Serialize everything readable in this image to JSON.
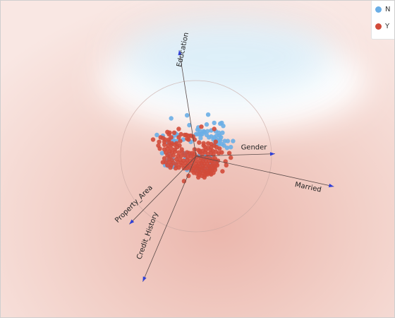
{
  "chart_data": {
    "type": "scatter",
    "title": "",
    "legend": {
      "placement": "top-right",
      "entries": [
        {
          "name": "N",
          "color": "#6aaee6"
        },
        {
          "name": "Y",
          "color": "#d24b3a"
        }
      ]
    },
    "axes": [
      {
        "name": "Education",
        "direction": [
          -0.16,
          -1.0
        ]
      },
      {
        "name": "Gender",
        "direction": [
          1.0,
          -0.03
        ]
      },
      {
        "name": "Married",
        "direction": [
          1.0,
          0.22
        ]
      },
      {
        "name": "Property_Area",
        "direction": [
          -0.53,
          0.54
        ]
      },
      {
        "name": "Credit_History",
        "direction": [
          -0.4,
          0.94
        ]
      }
    ],
    "series": [
      {
        "name": "N",
        "color": "#6aaee6",
        "points": [
          [
            -0.12,
            -0.54
          ],
          [
            0.16,
            -0.55
          ],
          [
            -0.33,
            -0.5
          ],
          [
            0.24,
            -0.44
          ],
          [
            -0.09,
            -0.41
          ],
          [
            0.14,
            -0.42
          ],
          [
            0.32,
            -0.43
          ],
          [
            0.34,
            -0.44
          ],
          [
            0.36,
            -0.4
          ],
          [
            0.03,
            -0.38
          ],
          [
            0.02,
            -0.35
          ],
          [
            0.05,
            -0.33
          ],
          [
            0.1,
            -0.33
          ],
          [
            0.15,
            -0.33
          ],
          [
            0.11,
            -0.32
          ],
          [
            0.2,
            -0.34
          ],
          [
            0.26,
            -0.33
          ],
          [
            0.3,
            -0.31
          ],
          [
            0.35,
            -0.31
          ],
          [
            -0.27,
            -0.3
          ],
          [
            -0.25,
            -0.28
          ],
          [
            -0.29,
            -0.27
          ],
          [
            0.0,
            -0.29
          ],
          [
            0.03,
            -0.29
          ],
          [
            0.06,
            -0.29
          ],
          [
            0.08,
            -0.29
          ],
          [
            0.14,
            -0.28
          ],
          [
            0.17,
            -0.25
          ],
          [
            0.2,
            -0.26
          ],
          [
            0.24,
            -0.25
          ],
          [
            0.27,
            -0.27
          ],
          [
            0.31,
            -0.27
          ],
          [
            0.33,
            -0.25
          ],
          [
            -0.52,
            -0.28
          ],
          [
            -0.44,
            -0.27
          ],
          [
            -0.33,
            -0.23
          ],
          [
            -0.3,
            -0.21
          ],
          [
            -0.29,
            -0.19
          ],
          [
            -0.26,
            -0.2
          ],
          [
            -0.17,
            -0.22
          ],
          [
            -0.1,
            -0.22
          ],
          [
            -0.07,
            -0.19
          ],
          [
            0.06,
            -0.24
          ],
          [
            0.23,
            -0.22
          ],
          [
            0.27,
            -0.22
          ],
          [
            0.3,
            -0.21
          ],
          [
            0.32,
            -0.21
          ],
          [
            0.38,
            -0.2
          ],
          [
            0.42,
            -0.2
          ],
          [
            0.49,
            -0.2
          ],
          [
            -0.37,
            -0.18
          ],
          [
            0.25,
            -0.17
          ],
          [
            0.3,
            -0.16
          ],
          [
            0.34,
            -0.16
          ],
          [
            0.37,
            -0.14
          ],
          [
            0.41,
            -0.11
          ],
          [
            0.46,
            -0.12
          ],
          [
            -0.45,
            -0.04
          ],
          [
            -0.36,
            -0.03
          ],
          [
            -0.16,
            -0.04
          ],
          [
            -0.14,
            -0.03
          ],
          [
            -0.07,
            -0.02
          ],
          [
            0.03,
            0.0
          ],
          [
            0.06,
            -0.01
          ],
          [
            0.13,
            0.0
          ],
          [
            -0.36,
            0.01
          ],
          [
            -0.31,
            0.04
          ],
          [
            -0.39,
            0.06
          ],
          [
            -0.14,
            0.03
          ],
          [
            0.11,
            0.04
          ],
          [
            0.19,
            0.01
          ],
          [
            -0.33,
            0.1
          ],
          [
            -0.28,
            0.1
          ],
          [
            0.19,
            0.1
          ],
          [
            0.25,
            0.08
          ],
          [
            0.28,
            0.07
          ],
          [
            -0.41,
            0.12
          ],
          [
            -0.37,
            0.13
          ],
          [
            -0.31,
            0.14
          ],
          [
            -0.28,
            0.13
          ],
          [
            -0.08,
            0.13
          ],
          [
            0.08,
            0.12
          ],
          [
            0.23,
            0.12
          ],
          [
            0.03,
            0.17
          ],
          [
            0.1,
            0.17
          ],
          [
            0.13,
            0.17
          ],
          [
            0.15,
            0.16
          ],
          [
            0.2,
            0.17
          ],
          [
            -0.12,
            0.18
          ],
          [
            0.0,
            0.19
          ],
          [
            0.06,
            0.2
          ]
        ]
      },
      {
        "name": "Y",
        "color": "#d24b3a",
        "points": [
          [
            0.24,
            -0.36
          ],
          [
            -0.23,
            -0.36
          ],
          [
            -0.38,
            -0.32
          ],
          [
            -0.35,
            -0.31
          ],
          [
            -0.29,
            -0.31
          ],
          [
            -0.2,
            -0.29
          ],
          [
            -0.15,
            -0.28
          ],
          [
            -0.13,
            -0.28
          ],
          [
            -0.1,
            -0.27
          ],
          [
            -0.07,
            -0.27
          ],
          [
            -0.04,
            -0.26
          ],
          [
            -0.47,
            -0.25
          ],
          [
            -0.44,
            -0.24
          ],
          [
            -0.41,
            -0.22
          ],
          [
            -0.36,
            -0.22
          ],
          [
            -0.33,
            -0.25
          ],
          [
            -0.23,
            -0.25
          ],
          [
            -0.12,
            -0.23
          ],
          [
            -0.1,
            -0.22
          ],
          [
            -0.02,
            -0.22
          ],
          [
            -0.57,
            -0.22
          ],
          [
            -0.49,
            -0.19
          ],
          [
            -0.42,
            -0.19
          ],
          [
            -0.36,
            -0.19
          ],
          [
            -0.32,
            -0.17
          ],
          [
            -0.26,
            -0.17
          ],
          [
            -0.21,
            -0.2
          ],
          [
            0.04,
            -0.18
          ],
          [
            0.1,
            -0.17
          ],
          [
            0.16,
            -0.17
          ],
          [
            0.2,
            -0.16
          ],
          [
            0.26,
            -0.19
          ],
          [
            -0.5,
            -0.14
          ],
          [
            -0.42,
            -0.15
          ],
          [
            -0.37,
            -0.14
          ],
          [
            -0.33,
            -0.15
          ],
          [
            -0.28,
            -0.15
          ],
          [
            -0.25,
            -0.12
          ],
          [
            -0.22,
            -0.14
          ],
          [
            0.1,
            -0.14
          ],
          [
            0.12,
            -0.12
          ],
          [
            0.16,
            -0.11
          ],
          [
            0.2,
            -0.12
          ],
          [
            0.24,
            -0.14
          ],
          [
            0.27,
            -0.12
          ],
          [
            0.31,
            -0.1
          ],
          [
            -0.48,
            -0.1
          ],
          [
            -0.42,
            -0.09
          ],
          [
            -0.38,
            -0.1
          ],
          [
            -0.33,
            -0.1
          ],
          [
            -0.28,
            -0.09
          ],
          [
            -0.19,
            -0.09
          ],
          [
            -0.02,
            -0.09
          ],
          [
            0.03,
            -0.08
          ],
          [
            0.05,
            -0.07
          ],
          [
            0.09,
            -0.07
          ],
          [
            0.13,
            -0.08
          ],
          [
            0.19,
            -0.08
          ],
          [
            0.22,
            -0.07
          ],
          [
            0.26,
            -0.06
          ],
          [
            0.3,
            -0.04
          ],
          [
            -0.4,
            -0.05
          ],
          [
            -0.35,
            -0.06
          ],
          [
            -0.32,
            -0.05
          ],
          [
            -0.28,
            -0.06
          ],
          [
            -0.23,
            -0.05
          ],
          [
            -0.18,
            -0.05
          ],
          [
            -0.12,
            -0.05
          ],
          [
            -0.09,
            -0.04
          ],
          [
            -0.05,
            -0.04
          ],
          [
            -0.02,
            -0.03
          ],
          [
            0.05,
            -0.05
          ],
          [
            0.08,
            -0.03
          ],
          [
            0.12,
            -0.05
          ],
          [
            0.16,
            -0.03
          ],
          [
            0.2,
            -0.04
          ],
          [
            0.23,
            -0.02
          ],
          [
            -0.38,
            -0.01
          ],
          [
            -0.34,
            0.0
          ],
          [
            -0.3,
            -0.01
          ],
          [
            -0.24,
            0.0
          ],
          [
            -0.2,
            0.0
          ],
          [
            -0.15,
            -0.01
          ],
          [
            -0.11,
            0.01
          ],
          [
            -0.07,
            0.0
          ],
          [
            -0.03,
            0.01
          ],
          [
            0.01,
            0.01
          ],
          [
            0.06,
            0.02
          ],
          [
            0.1,
            0.03
          ],
          [
            0.14,
            0.02
          ],
          [
            0.18,
            0.03
          ],
          [
            0.22,
            0.04
          ],
          [
            0.25,
            0.03
          ],
          [
            -0.42,
            0.03
          ],
          [
            -0.36,
            0.04
          ],
          [
            -0.32,
            0.05
          ],
          [
            -0.26,
            0.04
          ],
          [
            -0.21,
            0.05
          ],
          [
            -0.17,
            0.06
          ],
          [
            -0.12,
            0.05
          ],
          [
            -0.08,
            0.06
          ],
          [
            -0.04,
            0.05
          ],
          [
            0.0,
            0.06
          ],
          [
            0.05,
            0.06
          ],
          [
            0.09,
            0.07
          ],
          [
            0.13,
            0.06
          ],
          [
            0.17,
            0.07
          ],
          [
            0.21,
            0.07
          ],
          [
            0.26,
            0.06
          ],
          [
            0.29,
            0.06
          ],
          [
            -0.44,
            0.08
          ],
          [
            -0.4,
            0.08
          ],
          [
            -0.35,
            0.08
          ],
          [
            -0.3,
            0.09
          ],
          [
            -0.24,
            0.08
          ],
          [
            -0.19,
            0.09
          ],
          [
            -0.14,
            0.09
          ],
          [
            -0.1,
            0.1
          ],
          [
            -0.05,
            0.09
          ],
          [
            0.0,
            0.1
          ],
          [
            0.04,
            0.1
          ],
          [
            0.07,
            0.09
          ],
          [
            0.11,
            0.1
          ],
          [
            0.15,
            0.1
          ],
          [
            0.22,
            0.1
          ],
          [
            0.27,
            0.1
          ],
          [
            -0.38,
            0.12
          ],
          [
            -0.33,
            0.12
          ],
          [
            -0.26,
            0.12
          ],
          [
            -0.2,
            0.12
          ],
          [
            -0.15,
            0.13
          ],
          [
            -0.11,
            0.13
          ],
          [
            -0.05,
            0.13
          ],
          [
            -0.01,
            0.14
          ],
          [
            0.02,
            0.13
          ],
          [
            0.05,
            0.14
          ],
          [
            0.09,
            0.13
          ],
          [
            0.12,
            0.13
          ],
          [
            0.17,
            0.13
          ],
          [
            0.2,
            0.13
          ],
          [
            0.24,
            0.13
          ],
          [
            0.28,
            0.12
          ],
          [
            -0.34,
            0.15
          ],
          [
            -0.27,
            0.16
          ],
          [
            -0.23,
            0.15
          ],
          [
            -0.16,
            0.16
          ],
          [
            -0.12,
            0.16
          ],
          [
            -0.07,
            0.16
          ],
          [
            -0.03,
            0.16
          ],
          [
            0.01,
            0.16
          ],
          [
            0.04,
            0.17
          ],
          [
            0.08,
            0.16
          ],
          [
            0.11,
            0.17
          ],
          [
            0.16,
            0.16
          ],
          [
            0.18,
            0.18
          ],
          [
            0.22,
            0.16
          ],
          [
            0.25,
            0.15
          ],
          [
            -0.06,
            0.19
          ],
          [
            -0.02,
            0.19
          ],
          [
            0.03,
            0.2
          ],
          [
            0.07,
            0.19
          ],
          [
            0.11,
            0.2
          ],
          [
            0.14,
            0.2
          ],
          [
            0.18,
            0.2
          ],
          [
            0.21,
            0.19
          ],
          [
            0.25,
            0.18
          ],
          [
            -0.03,
            0.22
          ],
          [
            0.01,
            0.23
          ],
          [
            0.05,
            0.22
          ],
          [
            0.09,
            0.23
          ],
          [
            0.13,
            0.22
          ],
          [
            0.16,
            0.22
          ],
          [
            0.19,
            0.23
          ],
          [
            0.23,
            0.22
          ],
          [
            0.04,
            0.25
          ],
          [
            0.08,
            0.26
          ],
          [
            0.12,
            0.25
          ],
          [
            0.15,
            0.24
          ],
          [
            0.2,
            0.24
          ],
          [
            0.03,
            0.28
          ],
          [
            0.11,
            0.28
          ],
          [
            -0.16,
            0.33
          ],
          [
            -0.1,
            0.26
          ],
          [
            0.35,
            0.2
          ],
          [
            0.44,
            -0.04
          ],
          [
            0.46,
            0.02
          ],
          [
            -0.36,
            -0.29
          ],
          [
            0.07,
            -0.39
          ],
          [
            0.34,
            -0.05
          ],
          [
            0.39,
            0.07
          ],
          [
            0.4,
            0.12
          ]
        ]
      }
    ]
  }
}
